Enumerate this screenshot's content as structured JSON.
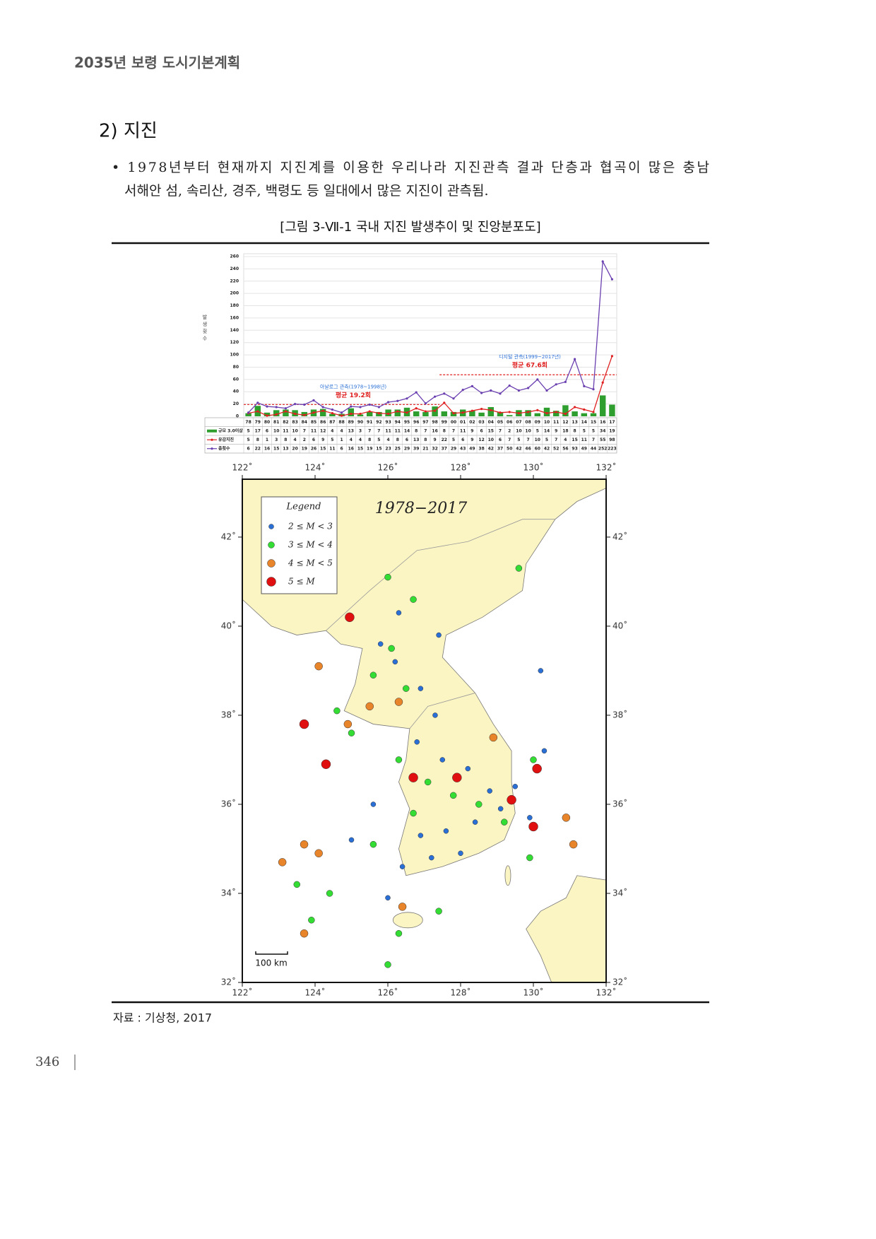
{
  "header": {
    "title": "2035년 보령 도시기본계획"
  },
  "section": {
    "title": "2) 지진",
    "bullet": [
      "• 1978년부터 현재까지 지진계를 이용한 우리나라 지진관측 결과 단층과 협곡이 많은 충남",
      "서해안 섬, 속리산, 경주, 백령도 등 일대에서 많은 지진이 관측됨."
    ]
  },
  "figure": {
    "caption": "[그림 3-Ⅶ-1 국내 지진 발생추이 및 진앙분포도]",
    "source": "자료 : 기상청, 2017"
  },
  "page_number": "346",
  "chart_data": [
    {
      "type": "combo",
      "y_label": "발생횟수",
      "categories": [
        "78",
        "79",
        "80",
        "81",
        "82",
        "83",
        "84",
        "85",
        "86",
        "87",
        "88",
        "89",
        "90",
        "91",
        "92",
        "93",
        "94",
        "95",
        "96",
        "97",
        "98",
        "99",
        "00",
        "01",
        "02",
        "03",
        "04",
        "05",
        "06",
        "07",
        "08",
        "09",
        "10",
        "11",
        "12",
        "13",
        "14",
        "15",
        "16",
        "17"
      ],
      "series": [
        {
          "name": "규모 3.0이상",
          "type": "bar",
          "color": "#2e9e2e",
          "values": [
            5,
            17,
            6,
            10,
            11,
            10,
            7,
            11,
            12,
            4,
            4,
            13,
            3,
            7,
            7,
            11,
            11,
            14,
            8,
            7,
            16,
            8,
            7,
            11,
            9,
            6,
            15,
            7,
            2,
            10,
            10,
            5,
            14,
            9,
            18,
            8,
            5,
            5,
            34,
            19
          ]
        },
        {
          "name": "유감지진",
          "type": "line",
          "color": "#e02020",
          "values": [
            5,
            8,
            1,
            3,
            8,
            4,
            2,
            6,
            9,
            5,
            1,
            4,
            4,
            8,
            5,
            4,
            8,
            6,
            13,
            8,
            9,
            22,
            5,
            6,
            9,
            12,
            10,
            6,
            7,
            5,
            7,
            10,
            5,
            7,
            4,
            15,
            11,
            7,
            55,
            98
          ]
        },
        {
          "name": "총횟수",
          "type": "line",
          "color": "#6a3fb0",
          "values": [
            6,
            22,
            16,
            15,
            13,
            20,
            19,
            26,
            15,
            11,
            6,
            16,
            15,
            19,
            15,
            23,
            25,
            29,
            39,
            21,
            32,
            37,
            29,
            43,
            49,
            38,
            42,
            37,
            50,
            42,
            46,
            60,
            42,
            52,
            56,
            93,
            49,
            44,
            252,
            223
          ]
        }
      ],
      "average_lines": [
        {
          "period": "아날로그 관측(1978~1998년)",
          "value": 19.2,
          "value_label": "평균 19.2회"
        },
        {
          "period": "디지털 관측(1999~2017년)",
          "value": 67.6,
          "value_label": "평균 67.6회"
        }
      ],
      "ylim": [
        0,
        260
      ],
      "yticks": [
        0,
        20,
        40,
        60,
        80,
        100,
        120,
        140,
        160,
        180,
        200,
        220,
        240,
        260
      ],
      "grid": true
    },
    {
      "type": "map",
      "title": "1978−2017",
      "legend_title": "Legend",
      "scale_label": "100 km",
      "xlim": [
        122,
        132
      ],
      "ylim": [
        32,
        43.3
      ],
      "xticks": [
        {
          "value": 122,
          "label": "122˚"
        },
        {
          "value": 124,
          "label": "124˚"
        },
        {
          "value": 126,
          "label": "126˚"
        },
        {
          "value": 128,
          "label": "128˚"
        },
        {
          "value": 130,
          "label": "130˚"
        },
        {
          "value": 132,
          "label": "132˚"
        }
      ],
      "yticks": [
        {
          "value": 32,
          "label": "32˚"
        },
        {
          "value": 34,
          "label": "34˚"
        },
        {
          "value": 36,
          "label": "36˚"
        },
        {
          "value": 38,
          "label": "38˚"
        },
        {
          "value": 40,
          "label": "40˚"
        },
        {
          "value": 42,
          "label": "42˚"
        }
      ],
      "series": [
        {
          "name": "2 ≤ M < 3",
          "color": "#2a6fd6",
          "x": [
            125.8,
            126.2,
            126.9,
            127.3,
            126.8,
            127.5,
            128.2,
            128.8,
            129.1,
            128.4,
            127.6,
            126.9,
            126.4,
            127.2,
            128.0,
            129.5,
            130.3,
            125.6,
            125.0,
            126.0,
            127.4,
            126.3,
            130.2,
            129.9
          ],
          "y": [
            39.6,
            39.2,
            38.6,
            38.0,
            37.4,
            37.0,
            36.8,
            36.3,
            35.9,
            35.6,
            35.4,
            35.3,
            34.6,
            34.8,
            34.9,
            36.4,
            37.2,
            36.0,
            35.2,
            33.9,
            39.8,
            40.3,
            39.0,
            35.7
          ]
        },
        {
          "name": "3 ≤ M < 4",
          "color": "#33dd33",
          "x": [
            126.1,
            125.6,
            126.5,
            124.6,
            125.0,
            126.3,
            127.1,
            127.8,
            128.5,
            129.2,
            126.7,
            125.6,
            123.5,
            124.4,
            123.9,
            126.0,
            126.3,
            127.4,
            129.6,
            126.7,
            126.0,
            130.0,
            129.9
          ],
          "y": [
            39.5,
            38.9,
            38.6,
            38.1,
            37.6,
            37.0,
            36.5,
            36.2,
            36.0,
            35.6,
            35.8,
            35.1,
            34.2,
            34.0,
            33.4,
            32.4,
            33.1,
            33.6,
            41.3,
            40.6,
            41.1,
            37.0,
            34.8
          ]
        },
        {
          "name": "4 ≤ M < 5",
          "color": "#e8842a",
          "x": [
            124.1,
            126.3,
            124.9,
            123.1,
            123.7,
            123.7,
            124.1,
            128.9,
            130.9,
            131.1,
            126.4,
            125.5
          ],
          "y": [
            39.1,
            38.3,
            37.8,
            34.7,
            35.1,
            33.1,
            34.9,
            37.5,
            35.7,
            35.1,
            33.7,
            38.2
          ]
        },
        {
          "name": "5 ≤ M",
          "color": "#e01010",
          "x": [
            124.95,
            123.7,
            124.3,
            126.7,
            127.9,
            129.4,
            130.0,
            130.1
          ],
          "y": [
            40.2,
            37.8,
            36.9,
            36.6,
            36.6,
            36.1,
            35.5,
            36.8
          ]
        }
      ]
    }
  ]
}
